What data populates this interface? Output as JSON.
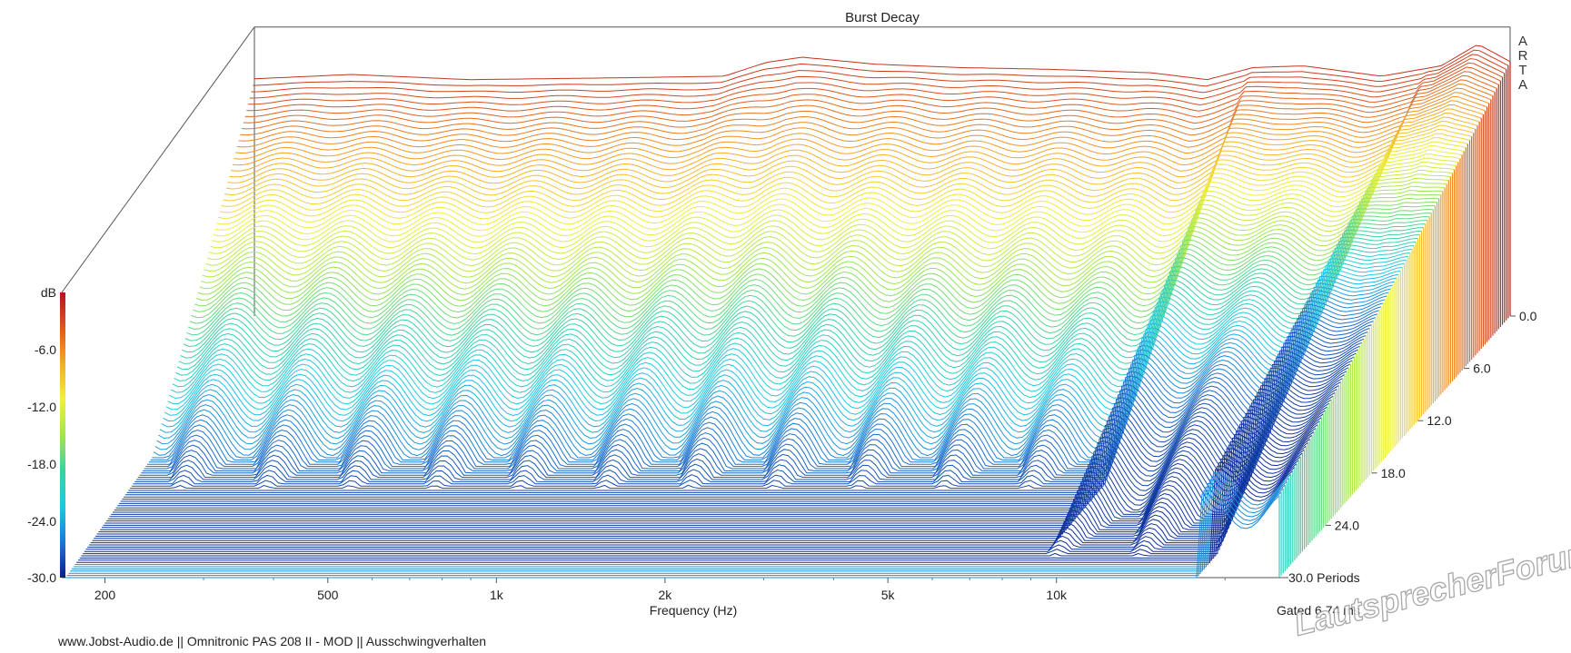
{
  "chart_data": {
    "type": "waterfall",
    "title": "Burst Decay",
    "xlabel": "Frequency (Hz)",
    "x_scale": "log",
    "xlim": [
      170,
      25000
    ],
    "x_ticks": [
      {
        "value": 200,
        "label": "200"
      },
      {
        "value": 500,
        "label": "500"
      },
      {
        "value": 1000,
        "label": "1k"
      },
      {
        "value": 2000,
        "label": "2k"
      },
      {
        "value": 5000,
        "label": "5k"
      },
      {
        "value": 10000,
        "label": "10k"
      }
    ],
    "zlabel": "dB",
    "zlim": [
      -30,
      0
    ],
    "z_ticks": [
      "dB",
      "-6.0",
      "-12.0",
      "-18.0",
      "-24.0",
      "-30.0"
    ],
    "depth_ticks": [
      "0.0",
      "6.0",
      "12.0",
      "18.0",
      "24.0",
      "30.0 Periods"
    ],
    "depth_range": [
      0,
      30
    ],
    "depth_unit": "Periods",
    "gated_label": "Gated 6.74 ms",
    "colormap": [
      "#0a1e8c",
      "#1e78d2",
      "#1ec8e6",
      "#3cd2a0",
      "#a0e650",
      "#f0f03c",
      "#f5aa28",
      "#dc5a1e",
      "#b4141e"
    ],
    "initial_response_db": [
      {
        "f": 170,
        "db": -2.5
      },
      {
        "f": 250,
        "db": -2.0
      },
      {
        "f": 400,
        "db": -2.6
      },
      {
        "f": 700,
        "db": -2.4
      },
      {
        "f": 1100,
        "db": -2.2
      },
      {
        "f": 1300,
        "db": -0.6
      },
      {
        "f": 1500,
        "db": 0.0
      },
      {
        "f": 2000,
        "db": -0.8
      },
      {
        "f": 2800,
        "db": -1.2
      },
      {
        "f": 4000,
        "db": -1.4
      },
      {
        "f": 6000,
        "db": -1.8
      },
      {
        "f": 7500,
        "db": -2.6
      },
      {
        "f": 9000,
        "db": -1.2
      },
      {
        "f": 11000,
        "db": -1.0
      },
      {
        "f": 15000,
        "db": -2.2
      },
      {
        "f": 19000,
        "db": -1.0
      },
      {
        "f": 22000,
        "db": 1.5
      },
      {
        "f": 25000,
        "db": -0.5
      }
    ],
    "decay_floor_reached_period": 20
  },
  "brand": {
    "letters": [
      "A",
      "R",
      "T",
      "A"
    ]
  },
  "footer": {
    "text": "www.Jobst-Audio.de  ||  Omnitronic PAS 208 II - MOD  ||  Ausschwingverhalten"
  },
  "watermark": {
    "text": "LautsprecherForum.eu"
  }
}
